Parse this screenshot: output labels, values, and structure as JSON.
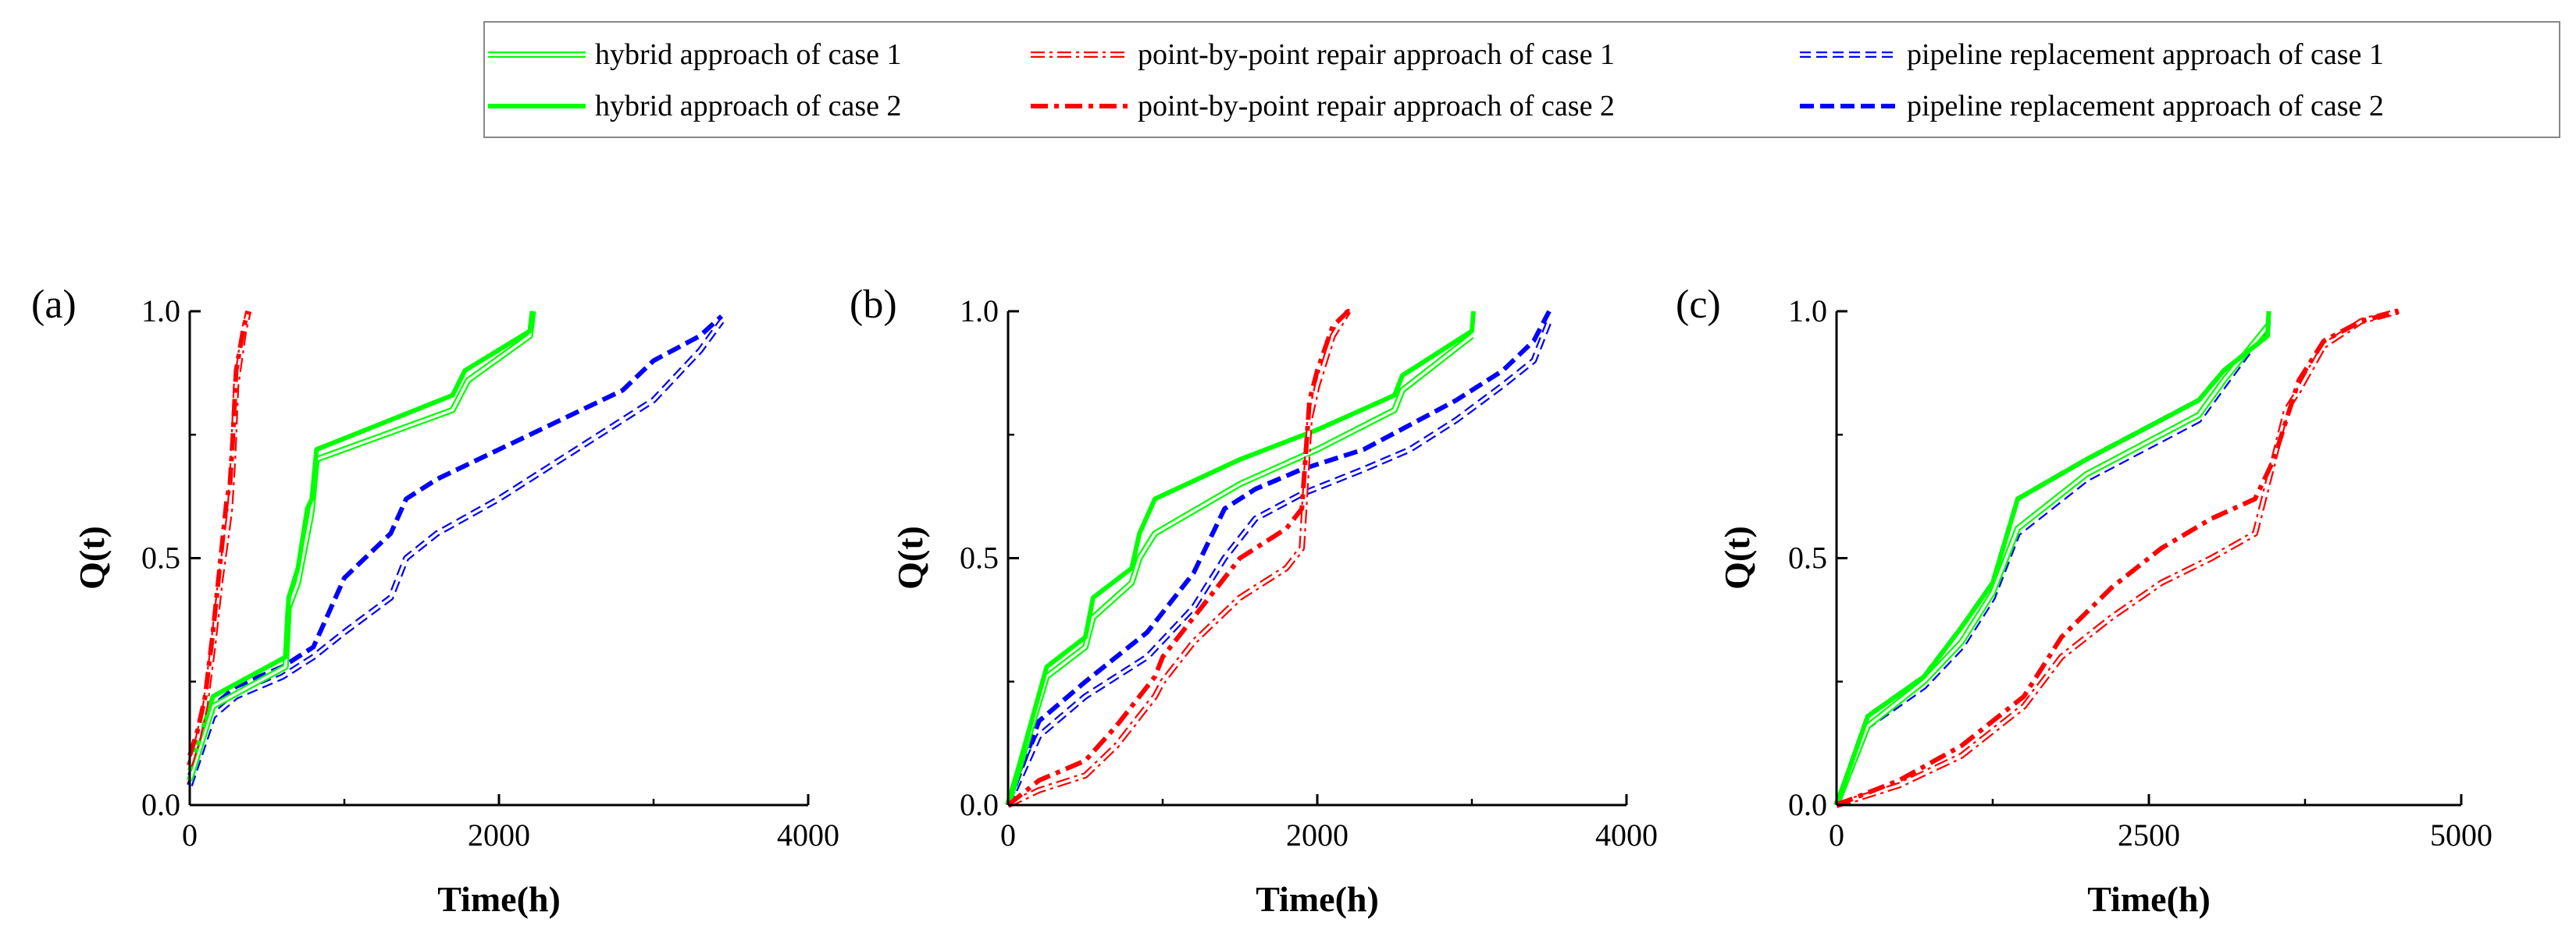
{
  "legend": {
    "entries": [
      {
        "key": "hybrid_1",
        "label": "hybrid approach of case 1",
        "color": "#00ff00",
        "style": "double"
      },
      {
        "key": "point_1",
        "label": "point-by-point repair approach of case 1",
        "color": "#ff0000",
        "style": "double-dashdot"
      },
      {
        "key": "pipe_1",
        "label": "pipeline replacement approach of case 1",
        "color": "#0000ff",
        "style": "double-dash"
      },
      {
        "key": "hybrid_2",
        "label": "hybrid approach of case 2",
        "color": "#00ff00",
        "style": "solid"
      },
      {
        "key": "point_2",
        "label": "point-by-point repair approach of case 2",
        "color": "#ff0000",
        "style": "dashdot"
      },
      {
        "key": "pipe_2",
        "label": "pipeline replacement approach of case 2",
        "color": "#0000ff",
        "style": "dash"
      }
    ]
  },
  "chart_data": [
    {
      "type": "line",
      "panel_label": "(a)",
      "xlabel": "Time(h)",
      "ylabel": "Q(t)",
      "xlim": [
        0,
        4000
      ],
      "ylim": [
        0,
        1
      ],
      "xticks": [
        0,
        2000,
        4000
      ],
      "xtick_labels": [
        "0",
        "2000",
        "4000"
      ],
      "yticks": [
        0,
        0.5,
        1
      ],
      "ytick_labels": [
        "0.0",
        "0.5",
        "1.0"
      ],
      "series": [
        {
          "key": "pipe_1",
          "name": "pipeline replacement approach of case 1",
          "x": [
            0,
            150,
            300,
            600,
            800,
            1000,
            1300,
            1400,
            1600,
            2000,
            2400,
            2800,
            3000,
            3300,
            3440
          ],
          "y": [
            0.04,
            0.18,
            0.22,
            0.26,
            0.3,
            0.35,
            0.42,
            0.5,
            0.55,
            0.62,
            0.7,
            0.78,
            0.82,
            0.92,
            0.98
          ]
        },
        {
          "key": "pipe_2",
          "name": "pipeline replacement approach of case 2",
          "x": [
            0,
            150,
            300,
            600,
            800,
            1000,
            1300,
            1400,
            1600,
            2000,
            2400,
            2800,
            3000,
            3300,
            3440
          ],
          "y": [
            0.06,
            0.2,
            0.24,
            0.28,
            0.32,
            0.46,
            0.55,
            0.62,
            0.66,
            0.72,
            0.78,
            0.84,
            0.9,
            0.95,
            0.99
          ]
        },
        {
          "key": "hybrid_1",
          "name": "hybrid approach of case 1",
          "x": [
            0,
            150,
            620,
            640,
            700,
            780,
            790,
            820,
            1700,
            1800,
            2200,
            2220
          ],
          "y": [
            0.05,
            0.2,
            0.28,
            0.4,
            0.45,
            0.58,
            0.6,
            0.7,
            0.8,
            0.86,
            0.95,
            1.0
          ]
        },
        {
          "key": "hybrid_2",
          "name": "hybrid approach of case 2",
          "x": [
            0,
            150,
            620,
            640,
            700,
            760,
            790,
            820,
            1700,
            1780,
            2200,
            2220
          ],
          "y": [
            0.07,
            0.22,
            0.3,
            0.42,
            0.48,
            0.6,
            0.62,
            0.72,
            0.83,
            0.88,
            0.96,
            1.0
          ]
        },
        {
          "key": "point_1",
          "name": "point-by-point repair approach of case 1",
          "x": [
            0,
            50,
            100,
            150,
            200,
            240,
            260,
            280,
            300,
            350,
            380
          ],
          "y": [
            0.08,
            0.13,
            0.2,
            0.32,
            0.46,
            0.55,
            0.6,
            0.7,
            0.85,
            0.96,
            1.0
          ]
        },
        {
          "key": "point_2",
          "name": "point-by-point repair approach of case 2",
          "x": [
            0,
            50,
            100,
            150,
            200,
            240,
            260,
            280,
            300,
            350,
            380
          ],
          "y": [
            0.1,
            0.15,
            0.22,
            0.35,
            0.5,
            0.62,
            0.65,
            0.75,
            0.88,
            0.97,
            1.0
          ]
        }
      ]
    },
    {
      "type": "line",
      "panel_label": "(b)",
      "xlabel": "Time(h)",
      "ylabel": "Q(t)",
      "xlim": [
        0,
        4000
      ],
      "ylim": [
        0,
        1
      ],
      "xticks": [
        0,
        2000,
        4000
      ],
      "xtick_labels": [
        "0",
        "2000",
        "4000"
      ],
      "yticks": [
        0,
        0.5,
        1
      ],
      "ytick_labels": [
        "0.0",
        "0.5",
        "1.0"
      ],
      "series": [
        {
          "key": "pipe_1",
          "name": "pipeline replacement approach of case 1",
          "x": [
            0,
            200,
            500,
            900,
            1200,
            1400,
            1600,
            1900,
            2300,
            2600,
            2900,
            3200,
            3400,
            3500
          ],
          "y": [
            0,
            0.14,
            0.22,
            0.3,
            0.4,
            0.5,
            0.58,
            0.63,
            0.68,
            0.72,
            0.78,
            0.85,
            0.9,
            0.98
          ]
        },
        {
          "key": "pipe_2",
          "name": "pipeline replacement approach of case 2",
          "x": [
            0,
            200,
            500,
            900,
            1200,
            1400,
            1600,
            1900,
            2300,
            2600,
            2900,
            3200,
            3400,
            3500
          ],
          "y": [
            0,
            0.17,
            0.25,
            0.35,
            0.47,
            0.6,
            0.64,
            0.68,
            0.72,
            0.77,
            0.82,
            0.88,
            0.94,
            1.0
          ]
        },
        {
          "key": "hybrid_1",
          "name": "hybrid approach of case 1",
          "x": [
            0,
            250,
            500,
            550,
            800,
            850,
            950,
            1500,
            2000,
            2500,
            2550,
            3000
          ],
          "y": [
            0,
            0.26,
            0.32,
            0.38,
            0.45,
            0.5,
            0.55,
            0.65,
            0.72,
            0.8,
            0.84,
            0.95
          ]
        },
        {
          "key": "hybrid_2",
          "name": "hybrid approach of case 2",
          "x": [
            0,
            250,
            500,
            550,
            800,
            850,
            950,
            1500,
            2000,
            2500,
            2550,
            3000,
            3010
          ],
          "y": [
            0,
            0.28,
            0.34,
            0.42,
            0.48,
            0.55,
            0.62,
            0.7,
            0.76,
            0.83,
            0.87,
            0.96,
            1.0
          ]
        },
        {
          "key": "point_1",
          "name": "point-by-point repair approach of case 1",
          "x": [
            0,
            200,
            500,
            700,
            800,
            950,
            1000,
            1200,
            1500,
            1800,
            1900,
            1950,
            2000,
            2100,
            2200
          ],
          "y": [
            0,
            0.03,
            0.06,
            0.12,
            0.16,
            0.22,
            0.25,
            0.33,
            0.42,
            0.48,
            0.52,
            0.78,
            0.85,
            0.95,
            1.0
          ]
        },
        {
          "key": "point_2",
          "name": "point-by-point repair approach of case 2",
          "x": [
            0,
            200,
            500,
            700,
            800,
            950,
            1000,
            1200,
            1500,
            1800,
            1900,
            1950,
            2000,
            2100,
            2200,
            2250
          ],
          "y": [
            0,
            0.05,
            0.09,
            0.16,
            0.2,
            0.26,
            0.3,
            0.38,
            0.5,
            0.56,
            0.6,
            0.82,
            0.88,
            0.97,
            1.0,
            1.0
          ]
        }
      ]
    },
    {
      "type": "line",
      "panel_label": "(c)",
      "xlabel": "Time(h)",
      "ylabel": "Q(t)",
      "xlim": [
        0,
        5000
      ],
      "ylim": [
        0,
        1
      ],
      "xticks": [
        0,
        2500,
        5000
      ],
      "xtick_labels": [
        "0",
        "2500",
        "5000"
      ],
      "yticks": [
        0,
        0.5,
        1
      ],
      "ytick_labels": [
        "0.0",
        "0.5",
        "1.0"
      ],
      "series": [
        {
          "key": "pipe_1",
          "name": "pipeline replacement approach of case 1",
          "x": [
            0,
            250,
            700,
            1000,
            1250,
            1450,
            2000,
            2900,
            3100,
            3450
          ],
          "y": [
            0,
            0.16,
            0.24,
            0.32,
            0.42,
            0.55,
            0.66,
            0.78,
            0.85,
            0.97
          ]
        },
        {
          "key": "pipe_2",
          "name": "pipeline replacement approach of case 2",
          "x": [
            0,
            250,
            700,
            1000,
            1250,
            1450,
            2000,
            2900,
            3100,
            3450,
            3460
          ],
          "y": [
            0,
            0.18,
            0.26,
            0.36,
            0.45,
            0.62,
            0.7,
            0.82,
            0.88,
            0.95,
            1.0
          ]
        },
        {
          "key": "hybrid_1",
          "name": "hybrid approach of case 1",
          "x": [
            0,
            250,
            700,
            1000,
            1250,
            1450,
            2000,
            2900,
            3100,
            3450
          ],
          "y": [
            0,
            0.16,
            0.25,
            0.33,
            0.43,
            0.56,
            0.67,
            0.79,
            0.86,
            0.97
          ]
        },
        {
          "key": "hybrid_2",
          "name": "hybrid approach of case 2",
          "x": [
            0,
            250,
            700,
            1000,
            1250,
            1450,
            2000,
            2900,
            3100,
            3450,
            3460
          ],
          "y": [
            0,
            0.18,
            0.26,
            0.36,
            0.45,
            0.62,
            0.7,
            0.82,
            0.88,
            0.95,
            1.0
          ]
        },
        {
          "key": "point_1",
          "name": "point-by-point repair approach of case 1",
          "x": [
            0,
            500,
            1000,
            1500,
            1800,
            2200,
            2600,
            3000,
            3350,
            3600,
            3700,
            3900,
            4200,
            4500
          ],
          "y": [
            0,
            0.04,
            0.1,
            0.2,
            0.3,
            0.38,
            0.45,
            0.5,
            0.55,
            0.8,
            0.84,
            0.93,
            0.98,
            1.0
          ]
        },
        {
          "key": "point_2",
          "name": "point-by-point repair approach of case 2",
          "x": [
            0,
            500,
            1000,
            1500,
            1800,
            2200,
            2600,
            3000,
            3350,
            3500,
            3700,
            3900,
            4200,
            4500
          ],
          "y": [
            0,
            0.05,
            0.12,
            0.22,
            0.34,
            0.44,
            0.52,
            0.58,
            0.62,
            0.7,
            0.86,
            0.94,
            0.98,
            1.0
          ]
        }
      ]
    }
  ]
}
